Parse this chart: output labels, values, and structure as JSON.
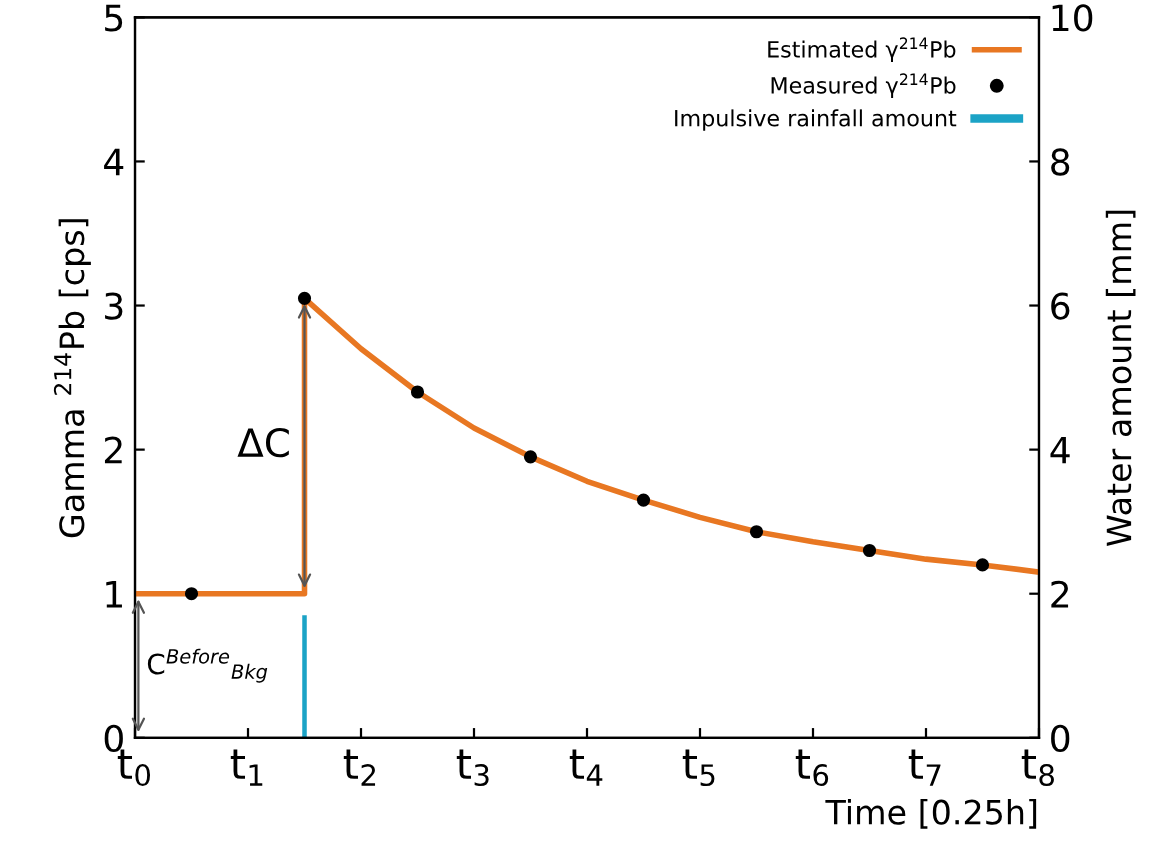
{
  "chart_data": {
    "type": "line",
    "xlabel": "Time [0.25h]",
    "ylabel": "Gamma $^{214}$Pb [cps]",
    "y2label": "Water amount [mm]",
    "xlim": [
      0,
      8
    ],
    "xticks": [
      {
        "value": 0,
        "label": "t$_{0}$"
      },
      {
        "value": 1,
        "label": "t$_{1}$"
      },
      {
        "value": 2,
        "label": "t$_{2}$"
      },
      {
        "value": 3,
        "label": "t$_{3}$"
      },
      {
        "value": 4,
        "label": "t$_{4}$"
      },
      {
        "value": 5,
        "label": "t$_{5}$"
      },
      {
        "value": 6,
        "label": "t$_{6}$"
      },
      {
        "value": 7,
        "label": "t$_{7}$"
      },
      {
        "value": 8,
        "label": "t$_{8}$"
      }
    ],
    "ylim": [
      0,
      5
    ],
    "yticks": [
      0,
      1,
      2,
      3,
      4,
      5
    ],
    "y2lim": [
      0,
      10
    ],
    "y2ticks": [
      0,
      2,
      4,
      6,
      8,
      10
    ],
    "series": [
      {
        "name": "Estimated γ$^{214}$Pb",
        "color": "#e87722",
        "x": [
          0,
          1.5,
          1.5,
          2,
          2.5,
          3,
          3.5,
          4,
          4.5,
          5,
          5.5,
          6,
          6.5,
          7,
          7.5,
          8
        ],
        "values": [
          1,
          1,
          3.05,
          2.7,
          2.4,
          2.15,
          1.95,
          1.78,
          1.65,
          1.53,
          1.43,
          1.36,
          1.3,
          1.24,
          1.2,
          1.15
        ]
      },
      {
        "name": "Measured γ$^{214}$Pb",
        "type": "scatter",
        "marker": "circle",
        "color": "#000000",
        "x": [
          0.5,
          1.5,
          2.5,
          3.5,
          4.5,
          5.5,
          6.5,
          7.5
        ],
        "values": [
          1.0,
          3.05,
          2.4,
          1.95,
          1.65,
          1.43,
          1.3,
          1.2
        ]
      },
      {
        "name": "Impulsive rainfall amount",
        "type": "bar",
        "axis": "y2",
        "color": "#1ba3c6",
        "x": [
          1.5
        ],
        "values": [
          1.7
        ]
      }
    ],
    "annotations": [
      "ΔC",
      "C$^{Before}$$_{Bkg}$"
    ],
    "legend": "top right",
    "grid": false
  }
}
